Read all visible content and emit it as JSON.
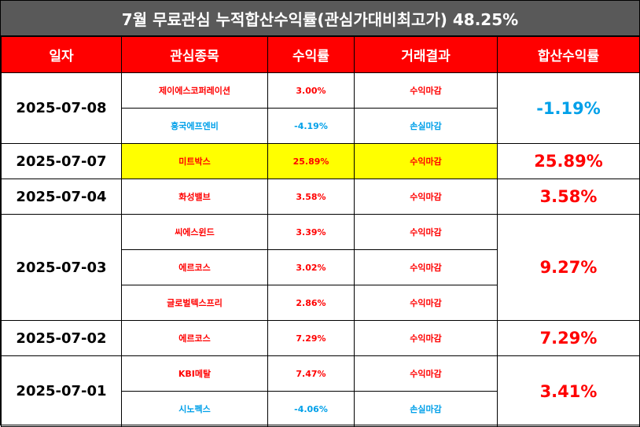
{
  "title": "7월 무료관심 누적합산수익률(관심가대비최고가) 48.25%",
  "header": {
    "date": "일자",
    "stock": "관심종목",
    "return": "수익률",
    "result": "거래결과",
    "total": "합산수익률"
  },
  "colors": {
    "title_bg": "#595959",
    "header_bg": "#ff0000",
    "positive": "#ff0000",
    "negative": "#00a0e9",
    "highlight": "#ffff00"
  },
  "groups": [
    {
      "date": "2025-07-08",
      "total": "-1.19%",
      "rows": [
        {
          "stock": "제이에스코퍼레이션",
          "return": "3.00%",
          "result": "수익마감"
        },
        {
          "stock": "흥국에프엔비",
          "return": "-4.19%",
          "result": "손실마감"
        }
      ]
    },
    {
      "date": "2025-07-07",
      "total": "25.89%",
      "rows": [
        {
          "stock": "미트박스",
          "return": "25.89%",
          "result": "수익마감"
        }
      ]
    },
    {
      "date": "2025-07-04",
      "total": "3.58%",
      "rows": [
        {
          "stock": "화성밸브",
          "return": "3.58%",
          "result": "수익마감"
        }
      ]
    },
    {
      "date": "2025-07-03",
      "total": "9.27%",
      "rows": [
        {
          "stock": "씨에스윈드",
          "return": "3.39%",
          "result": "수익마감"
        },
        {
          "stock": "에르코스",
          "return": "3.02%",
          "result": "수익마감"
        },
        {
          "stock": "글로벌텍스프리",
          "return": "2.86%",
          "result": "수익마감"
        }
      ]
    },
    {
      "date": "2025-07-02",
      "total": "7.29%",
      "rows": [
        {
          "stock": "에르코스",
          "return": "7.29%",
          "result": "수익마감"
        }
      ]
    },
    {
      "date": "2025-07-01",
      "total": "3.41%",
      "rows": [
        {
          "stock": "KBI메탈",
          "return": "7.47%",
          "result": "수익마감"
        },
        {
          "stock": "시노펙스",
          "return": "-4.06%",
          "result": "손실마감"
        }
      ]
    }
  ]
}
